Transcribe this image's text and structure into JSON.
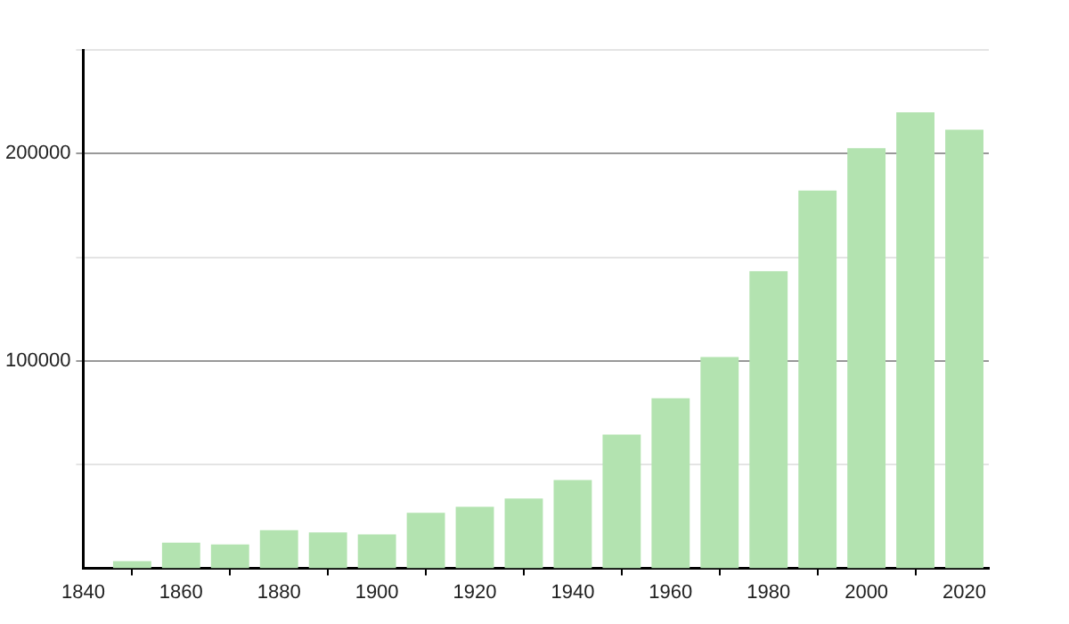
{
  "chart_data": {
    "type": "bar",
    "x": [
      1850,
      1860,
      1870,
      1880,
      1890,
      1900,
      1910,
      1920,
      1930,
      1940,
      1950,
      1960,
      1970,
      1980,
      1990,
      2000,
      2010,
      2020
    ],
    "values": [
      3500,
      12400,
      11500,
      18400,
      17300,
      16400,
      26800,
      29700,
      33700,
      42600,
      64500,
      82000,
      101900,
      143300,
      182200,
      202600,
      219900,
      211500
    ],
    "color": "#b3e3b0",
    "xlim": [
      1840,
      2025
    ],
    "xticks": [
      1840,
      1860,
      1880,
      1900,
      1920,
      1940,
      1960,
      1980,
      2000,
      2020
    ],
    "ylim": [
      0,
      250000
    ],
    "yticks": [
      {
        "value": 50000,
        "label": null
      },
      100000,
      {
        "value": 150000,
        "label": null
      },
      200000,
      {
        "value": 250000,
        "label": null
      }
    ],
    "grid": "y"
  }
}
